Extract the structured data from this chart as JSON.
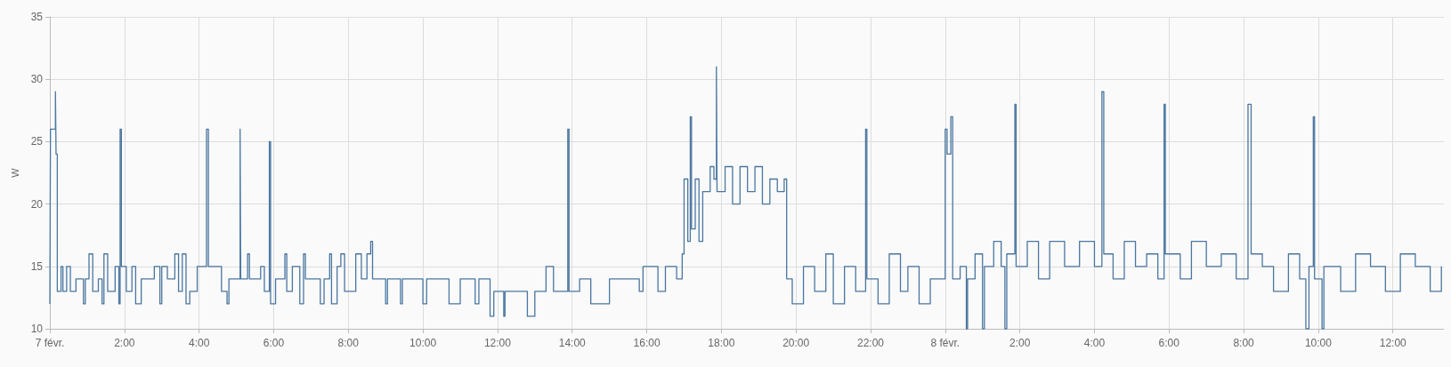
{
  "chart_data": {
    "type": "step",
    "ylabel": "W",
    "xlim": [
      "--02-07T00:00",
      "--02-08T13:22"
    ],
    "ylim": [
      10,
      35
    ],
    "yticks": [
      10,
      15,
      20,
      25,
      30,
      35
    ],
    "xticks": [
      {
        "value": "--02-07T00:00",
        "label": "7 févr."
      },
      {
        "value": "--02-07T02:00",
        "label": "2:00"
      },
      {
        "value": "--02-07T04:00",
        "label": "4:00"
      },
      {
        "value": "--02-07T06:00",
        "label": "6:00"
      },
      {
        "value": "--02-07T08:00",
        "label": "8:00"
      },
      {
        "value": "--02-07T10:00",
        "label": "10:00"
      },
      {
        "value": "--02-07T12:00",
        "label": "12:00"
      },
      {
        "value": "--02-07T14:00",
        "label": "14:00"
      },
      {
        "value": "--02-07T16:00",
        "label": "16:00"
      },
      {
        "value": "--02-07T18:00",
        "label": "18:00"
      },
      {
        "value": "--02-07T20:00",
        "label": "20:00"
      },
      {
        "value": "--02-07T22:00",
        "label": "22:00"
      },
      {
        "value": "--02-08T00:00",
        "label": "8 févr."
      },
      {
        "value": "--02-08T02:00",
        "label": "2:00"
      },
      {
        "value": "--02-08T04:00",
        "label": "4:00"
      },
      {
        "value": "--02-08T06:00",
        "label": "6:00"
      },
      {
        "value": "--02-08T08:00",
        "label": "8:00"
      },
      {
        "value": "--02-08T10:00",
        "label": "10:00"
      },
      {
        "value": "--02-08T12:00",
        "label": "12:00"
      }
    ],
    "grid": true,
    "marker": "none",
    "line_style": "solid",
    "series": [
      {
        "color": "#4a76a0",
        "x": [
          "--02-07T00:00",
          "--02-07T00:01",
          "--02-07T00:09",
          "--02-07T00:10",
          "--02-07T00:12",
          "--02-07T00:18",
          "--02-07T00:21",
          "--02-07T00:27",
          "--02-07T00:33",
          "--02-07T00:42",
          "--02-07T00:54",
          "--02-07T00:57",
          "--02-07T01:03",
          "--02-07T01:09",
          "--02-07T01:18",
          "--02-07T01:24",
          "--02-07T01:27",
          "--02-07T01:33",
          "--02-07T01:45",
          "--02-07T01:51",
          "--02-07T01:53",
          "--02-07T01:55",
          "--02-07T02:03",
          "--02-07T02:12",
          "--02-07T02:18",
          "--02-07T02:27",
          "--02-07T02:48",
          "--02-07T02:57",
          "--02-07T03:00",
          "--02-07T03:09",
          "--02-07T03:21",
          "--02-07T03:27",
          "--02-07T03:33",
          "--02-07T03:39",
          "--02-07T03:45",
          "--02-07T03:57",
          "--02-07T04:12",
          "--02-07T04:15",
          "--02-07T04:36",
          "--02-07T04:45",
          "--02-07T04:48",
          "--02-07T05:06",
          "--02-07T05:07",
          "--02-07T05:18",
          "--02-07T05:21",
          "--02-07T05:39",
          "--02-07T05:45",
          "--02-07T05:53",
          "--02-07T05:55",
          "--02-07T06:03",
          "--02-07T06:18",
          "--02-07T06:21",
          "--02-07T06:30",
          "--02-07T06:42",
          "--02-07T06:48",
          "--02-07T06:51",
          "--02-07T07:15",
          "--02-07T07:21",
          "--02-07T07:30",
          "--02-07T07:33",
          "--02-07T07:42",
          "--02-07T07:48",
          "--02-07T07:54",
          "--02-07T08:12",
          "--02-07T08:21",
          "--02-07T08:30",
          "--02-07T08:36",
          "--02-07T08:39",
          "--02-07T09:00",
          "--02-07T09:03",
          "--02-07T09:24",
          "--02-07T09:27",
          "--02-07T10:00",
          "--02-07T10:06",
          "--02-07T10:42",
          "--02-07T11:00",
          "--02-07T11:24",
          "--02-07T11:30",
          "--02-07T11:48",
          "--02-07T11:54",
          "--02-07T12:10",
          "--02-07T12:12",
          "--02-07T12:48",
          "--02-07T13:00",
          "--02-07T13:18",
          "--02-07T13:30",
          "--02-07T13:53",
          "--02-07T13:55",
          "--02-07T14:12",
          "--02-07T14:30",
          "--02-07T15:00",
          "--02-07T15:48",
          "--02-07T15:54",
          "--02-07T16:18",
          "--02-07T16:30",
          "--02-07T16:48",
          "--02-07T16:57",
          "--02-07T17:00",
          "--02-07T17:06",
          "--02-07T17:10",
          "--02-07T17:12",
          "--02-07T17:18",
          "--02-07T17:24",
          "--02-07T17:30",
          "--02-07T17:42",
          "--02-07T17:48",
          "--02-07T17:52",
          "--02-07T17:53",
          "--02-07T18:06",
          "--02-07T18:18",
          "--02-07T18:30",
          "--02-07T18:42",
          "--02-07T18:54",
          "--02-07T19:06",
          "--02-07T19:18",
          "--02-07T19:30",
          "--02-07T19:41",
          "--02-07T19:45",
          "--02-07T19:54",
          "--02-07T20:12",
          "--02-07T20:30",
          "--02-07T20:48",
          "--02-07T21:00",
          "--02-07T21:18",
          "--02-07T21:36",
          "--02-07T21:52",
          "--02-07T21:54",
          "--02-07T22:12",
          "--02-07T22:30",
          "--02-07T22:48",
          "--02-07T23:00",
          "--02-07T23:18",
          "--02-07T23:36",
          "--02-08T00:00",
          "--02-08T00:03",
          "--02-08T00:09",
          "--02-08T00:12",
          "--02-08T00:24",
          "--02-08T00:34",
          "--02-08T00:36",
          "--02-08T00:48",
          "--02-08T01:00",
          "--02-08T01:03",
          "--02-08T01:18",
          "--02-08T01:30",
          "--02-08T01:36",
          "--02-08T01:39",
          "--02-08T01:52",
          "--02-08T01:54",
          "--02-08T02:12",
          "--02-08T02:30",
          "--02-08T02:48",
          "--02-08T03:12",
          "--02-08T03:36",
          "--02-08T04:00",
          "--02-08T04:12",
          "--02-08T04:15",
          "--02-08T04:30",
          "--02-08T04:48",
          "--02-08T05:06",
          "--02-08T05:24",
          "--02-08T05:42",
          "--02-08T05:52",
          "--02-08T05:54",
          "--02-08T06:18",
          "--02-08T06:36",
          "--02-08T07:00",
          "--02-08T07:24",
          "--02-08T07:48",
          "--02-08T08:07",
          "--02-08T08:12",
          "--02-08T08:30",
          "--02-08T08:48",
          "--02-08T09:12",
          "--02-08T09:30",
          "--02-08T09:40",
          "--02-08T09:45",
          "--02-08T09:52",
          "--02-08T09:54",
          "--02-08T10:06",
          "--02-08T10:09",
          "--02-08T10:36",
          "--02-08T11:00",
          "--02-08T11:24",
          "--02-08T11:48",
          "--02-08T12:12",
          "--02-08T12:36",
          "--02-08T13:00",
          "--02-08T13:18"
        ],
        "values": [
          12,
          26,
          29,
          24,
          13,
          15,
          13,
          15,
          13,
          14,
          12,
          14,
          16,
          13,
          14,
          12,
          16,
          13,
          15,
          12,
          26,
          15,
          13,
          15,
          12,
          14,
          15,
          12,
          15,
          14,
          16,
          13,
          16,
          12,
          13,
          15,
          26,
          15,
          13,
          12,
          14,
          26,
          14,
          16,
          14,
          15,
          13,
          25,
          12,
          14,
          16,
          13,
          15,
          12,
          16,
          14,
          12,
          14,
          16,
          12,
          15,
          16,
          13,
          16,
          14,
          16,
          17,
          14,
          12,
          14,
          12,
          14,
          12,
          14,
          12,
          14,
          12,
          14,
          11,
          13,
          11,
          13,
          11,
          13,
          15,
          13,
          26,
          13,
          14,
          12,
          14,
          13,
          15,
          13,
          15,
          14,
          16,
          22,
          17,
          27,
          18,
          22,
          17,
          21,
          23,
          22,
          31,
          21,
          23,
          20,
          23,
          21,
          23,
          20,
          22,
          21,
          22,
          14,
          12,
          15,
          13,
          16,
          12,
          15,
          13,
          26,
          14,
          12,
          16,
          13,
          15,
          12,
          14,
          26,
          24,
          27,
          14,
          15,
          10,
          14,
          16,
          10,
          15,
          17,
          15,
          10,
          16,
          28,
          15,
          17,
          14,
          17,
          15,
          17,
          15,
          29,
          16,
          14,
          17,
          15,
          16,
          14,
          28,
          16,
          14,
          17,
          15,
          16,
          14,
          28,
          16,
          15,
          13,
          16,
          14,
          10,
          15,
          27,
          14,
          10,
          15,
          13,
          16,
          15,
          13,
          16,
          15,
          13,
          15
        ]
      }
    ]
  }
}
